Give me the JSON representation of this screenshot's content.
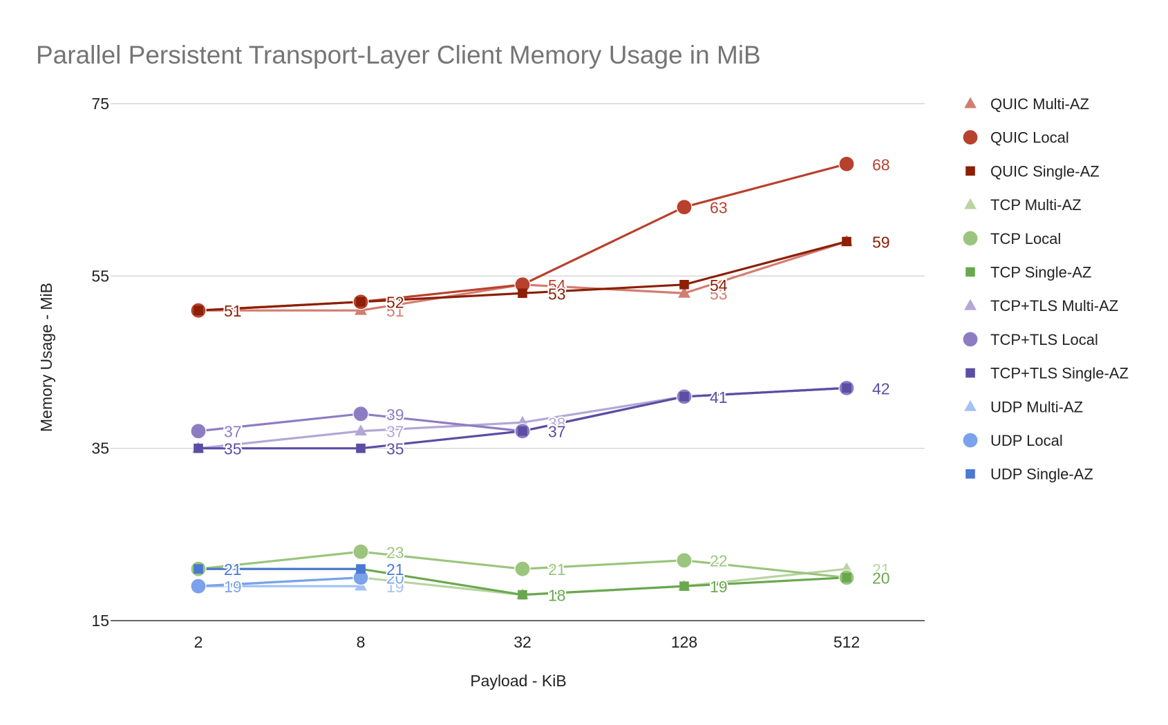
{
  "chart_data": {
    "type": "line",
    "title": "Parallel Persistent Transport-Layer Client Memory Usage in MiB",
    "xlabel": "Payload - KiB",
    "ylabel": "Memory Usage - MiB",
    "categories": [
      "2",
      "8",
      "32",
      "128",
      "512"
    ],
    "y_ticks": [
      15,
      35,
      55,
      75
    ],
    "ylim": [
      15,
      75
    ],
    "grid": "horizontal",
    "legend_position": "right",
    "data_labels": true,
    "series": [
      {
        "name": "QUIC Multi-AZ",
        "marker": "triangle",
        "color": "#d37d70",
        "values": [
          51,
          51,
          54,
          53,
          59
        ]
      },
      {
        "name": "QUIC Local",
        "marker": "circle",
        "color": "#b8412d",
        "values": [
          51,
          52,
          54,
          63,
          68
        ]
      },
      {
        "name": "QUIC Single-AZ",
        "marker": "square",
        "color": "#8c1f05",
        "values": [
          51,
          52,
          53,
          54,
          59
        ]
      },
      {
        "name": "TCP Multi-AZ",
        "marker": "triangle",
        "color": "#b8d4a1",
        "values": [
          19,
          20,
          18,
          19,
          21
        ]
      },
      {
        "name": "TCP Local",
        "marker": "circle",
        "color": "#9bc47d",
        "values": [
          21,
          23,
          21,
          22,
          20
        ]
      },
      {
        "name": "TCP Single-AZ",
        "marker": "square",
        "color": "#6aa84f",
        "values": [
          21,
          21,
          18,
          19,
          20
        ]
      },
      {
        "name": "TCP+TLS Multi-AZ",
        "marker": "triangle",
        "color": "#b4a7d6",
        "values": [
          35,
          37,
          38,
          41,
          42
        ]
      },
      {
        "name": "TCP+TLS Local",
        "marker": "circle",
        "color": "#8e7cc3",
        "values": [
          37,
          39,
          37,
          41,
          42
        ]
      },
      {
        "name": "TCP+TLS Single-AZ",
        "marker": "square",
        "color": "#5b4ea3",
        "values": [
          35,
          35,
          37,
          41,
          42
        ]
      },
      {
        "name": "UDP Multi-AZ",
        "marker": "triangle",
        "color": "#a4c2f4",
        "values": [
          19,
          19,
          null,
          null,
          null
        ]
      },
      {
        "name": "UDP Local",
        "marker": "circle",
        "color": "#7ba2ea",
        "values": [
          19,
          20,
          null,
          null,
          null
        ]
      },
      {
        "name": "UDP Single-AZ",
        "marker": "square",
        "color": "#4a78d2",
        "values": [
          21,
          21,
          null,
          null,
          null
        ]
      }
    ]
  }
}
